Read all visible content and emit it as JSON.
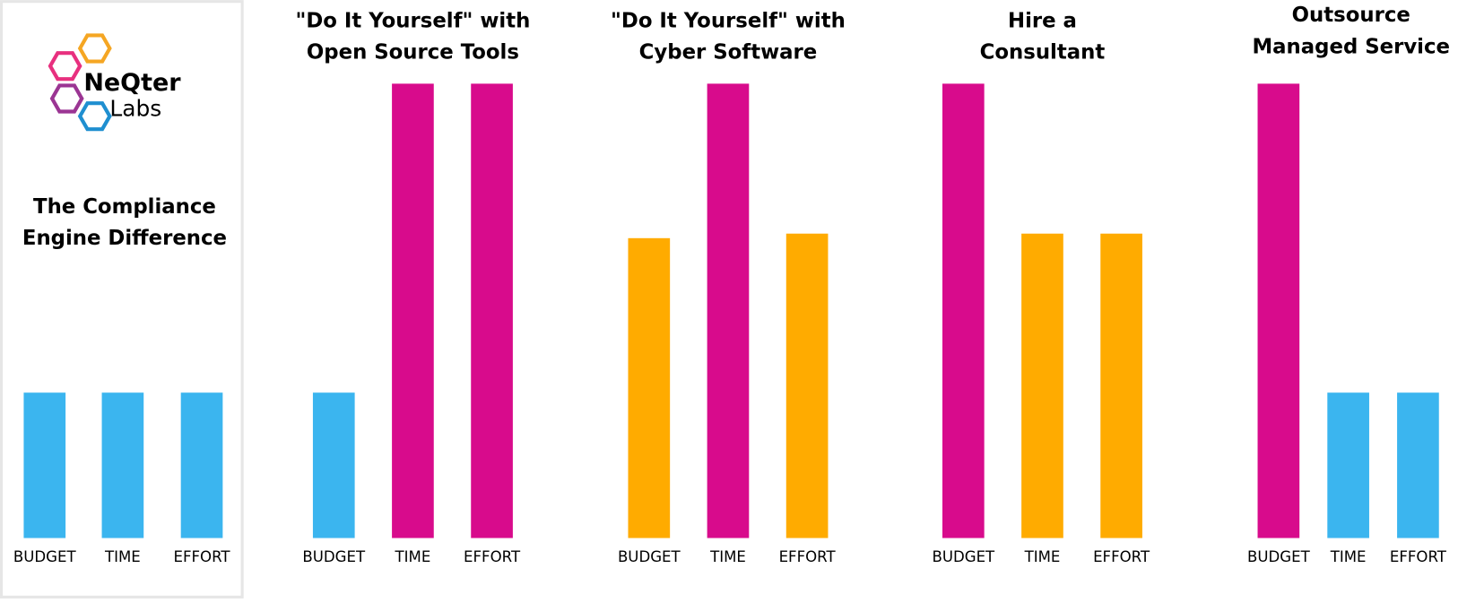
{
  "logo": {
    "name": "NeQter",
    "sub": "Labs"
  },
  "chart_data": [
    {
      "type": "bar",
      "title": [
        "The Compliance",
        "Engine Difference"
      ],
      "categories": [
        "BUDGET",
        "TIME",
        "EFFORT"
      ],
      "values": [
        32,
        32,
        32
      ],
      "colors": [
        "#3bb5ef",
        "#3bb5ef",
        "#3bb5ef"
      ]
    },
    {
      "type": "bar",
      "title": [
        "\"Do It Yourself\" with",
        "Open Source Tools"
      ],
      "categories": [
        "BUDGET",
        "TIME",
        "EFFORT"
      ],
      "values": [
        32,
        100,
        100
      ],
      "colors": [
        "#3bb5ef",
        "#d80b8c",
        "#d80b8c"
      ]
    },
    {
      "type": "bar",
      "title": [
        "\"Do It Yourself\" with",
        "Cyber Software"
      ],
      "categories": [
        "BUDGET",
        "TIME",
        "EFFORT"
      ],
      "values": [
        66,
        100,
        67
      ],
      "colors": [
        "#ffab00",
        "#d80b8c",
        "#ffab00"
      ]
    },
    {
      "type": "bar",
      "title": [
        "Hire a",
        "Consultant"
      ],
      "categories": [
        "BUDGET",
        "TIME",
        "EFFORT"
      ],
      "values": [
        100,
        67,
        67
      ],
      "colors": [
        "#d80b8c",
        "#ffab00",
        "#ffab00"
      ]
    },
    {
      "type": "bar",
      "title": [
        "Outsource",
        "Managed Service"
      ],
      "categories": [
        "BUDGET",
        "TIME",
        "EFFORT"
      ],
      "values": [
        100,
        32,
        32
      ],
      "colors": [
        "#d80b8c",
        "#3bb5ef",
        "#3bb5ef"
      ]
    }
  ]
}
